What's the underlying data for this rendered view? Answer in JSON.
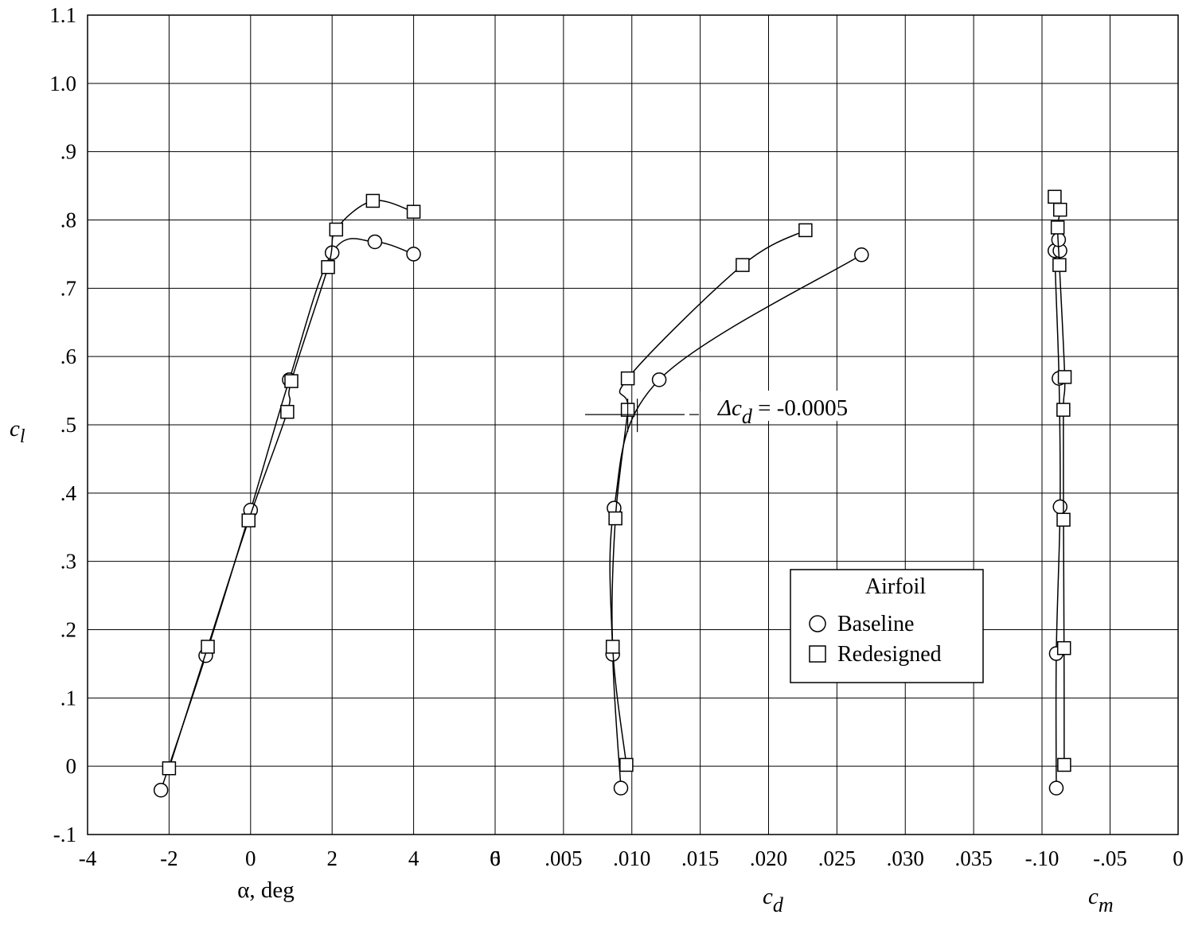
{
  "chart_data": {
    "type": "line",
    "ylabel": "c",
    "ylabel_sub": "l",
    "ylim": [
      -0.1,
      1.1
    ],
    "yticks": [
      -0.1,
      0,
      0.1,
      0.2,
      0.3,
      0.4,
      0.5,
      0.6,
      0.7,
      0.8,
      0.9,
      1.0,
      1.1
    ],
    "ytick_labels": [
      "-.1",
      "0",
      ".1",
      ".2",
      ".3",
      ".4",
      ".5",
      ".6",
      ".7",
      ".8",
      ".9",
      "1.0",
      "1.1"
    ],
    "grid": true,
    "panels": [
      {
        "id": "alpha",
        "xlabel": "α, deg",
        "xlabel_sub": "",
        "xlim": [
          -4,
          6
        ],
        "xticks": [
          -4,
          -2,
          0,
          2,
          4,
          6
        ],
        "xtick_labels": [
          "-4",
          "-2",
          "0",
          "2",
          "4",
          "6"
        ]
      },
      {
        "id": "cd",
        "xlabel": "c",
        "xlabel_sub": "d",
        "xlim": [
          0,
          0.04
        ],
        "xticks": [
          0,
          0.005,
          0.01,
          0.015,
          0.02,
          0.025,
          0.03,
          0.035
        ],
        "xtick_labels": [
          "0",
          ".005",
          ".010",
          ".015",
          ".020",
          ".025",
          ".030",
          ".035"
        ]
      },
      {
        "id": "cm",
        "xlabel": "c",
        "xlabel_sub": "m",
        "xlim": [
          -0.1,
          0
        ],
        "xticks": [
          -0.1,
          -0.05,
          0
        ],
        "xtick_labels": [
          "-.10",
          "-.05",
          "0"
        ]
      }
    ],
    "series": [
      {
        "name": "Baseline",
        "marker": "circle",
        "alpha": [
          {
            "x": -2.2,
            "y": -0.035
          },
          {
            "x": -1.1,
            "y": 0.162
          },
          {
            "x": 0.0,
            "y": 0.375
          },
          {
            "x": 0.95,
            "y": 0.566
          },
          {
            "x": 2.0,
            "y": 0.752
          },
          {
            "x": 3.05,
            "y": 0.768
          },
          {
            "x": 4.0,
            "y": 0.75
          }
        ],
        "cd": [
          {
            "x": 0.0092,
            "y": -0.032
          },
          {
            "x": 0.0086,
            "y": 0.164
          },
          {
            "x": 0.0087,
            "y": 0.378
          },
          {
            "x": 0.012,
            "y": 0.566
          },
          {
            "x": 0.0268,
            "y": 0.749
          }
        ],
        "cm": [
          {
            "x": -0.0895,
            "y": -0.032
          },
          {
            "x": -0.0895,
            "y": 0.165
          },
          {
            "x": -0.0867,
            "y": 0.38
          },
          {
            "x": -0.0875,
            "y": 0.568
          },
          {
            "x": -0.0905,
            "y": 0.755
          },
          {
            "x": -0.0868,
            "y": 0.755
          },
          {
            "x": -0.0878,
            "y": 0.771
          }
        ]
      },
      {
        "name": "Redesigned",
        "marker": "square",
        "alpha": [
          {
            "x": -2.0,
            "y": -0.003
          },
          {
            "x": -1.05,
            "y": 0.175
          },
          {
            "x": -0.05,
            "y": 0.36
          },
          {
            "x": 0.9,
            "y": 0.519
          },
          {
            "x": 1.0,
            "y": 0.564
          },
          {
            "x": 1.9,
            "y": 0.731
          },
          {
            "x": 2.1,
            "y": 0.786
          },
          {
            "x": 3.0,
            "y": 0.828
          },
          {
            "x": 4.0,
            "y": 0.812
          }
        ],
        "cd": [
          {
            "x": 0.0096,
            "y": 0.002
          },
          {
            "x": 0.0086,
            "y": 0.175
          },
          {
            "x": 0.0088,
            "y": 0.363
          },
          {
            "x": 0.0097,
            "y": 0.522
          },
          {
            "x": 0.0097,
            "y": 0.568
          },
          {
            "x": 0.0181,
            "y": 0.734
          },
          {
            "x": 0.0227,
            "y": 0.785
          }
        ],
        "cm": [
          {
            "x": -0.0837,
            "y": 0.002
          },
          {
            "x": -0.0838,
            "y": 0.173
          },
          {
            "x": -0.0842,
            "y": 0.361
          },
          {
            "x": -0.0843,
            "y": 0.522
          },
          {
            "x": -0.0833,
            "y": 0.57
          },
          {
            "x": -0.0872,
            "y": 0.734
          },
          {
            "x": -0.0885,
            "y": 0.789
          },
          {
            "x": -0.0867,
            "y": 0.815
          },
          {
            "x": -0.0907,
            "y": 0.834
          }
        ]
      }
    ],
    "annotation": {
      "prefix": "Δc",
      "sub": "d",
      "suffix": " = -0.0005",
      "bar_cd": [
        0.0097,
        0.0104
      ],
      "bar_y": 0.515
    },
    "legend": {
      "title": "Airfoil",
      "placement": "lower-right",
      "entries": [
        "Baseline",
        "Redesigned"
      ]
    }
  }
}
